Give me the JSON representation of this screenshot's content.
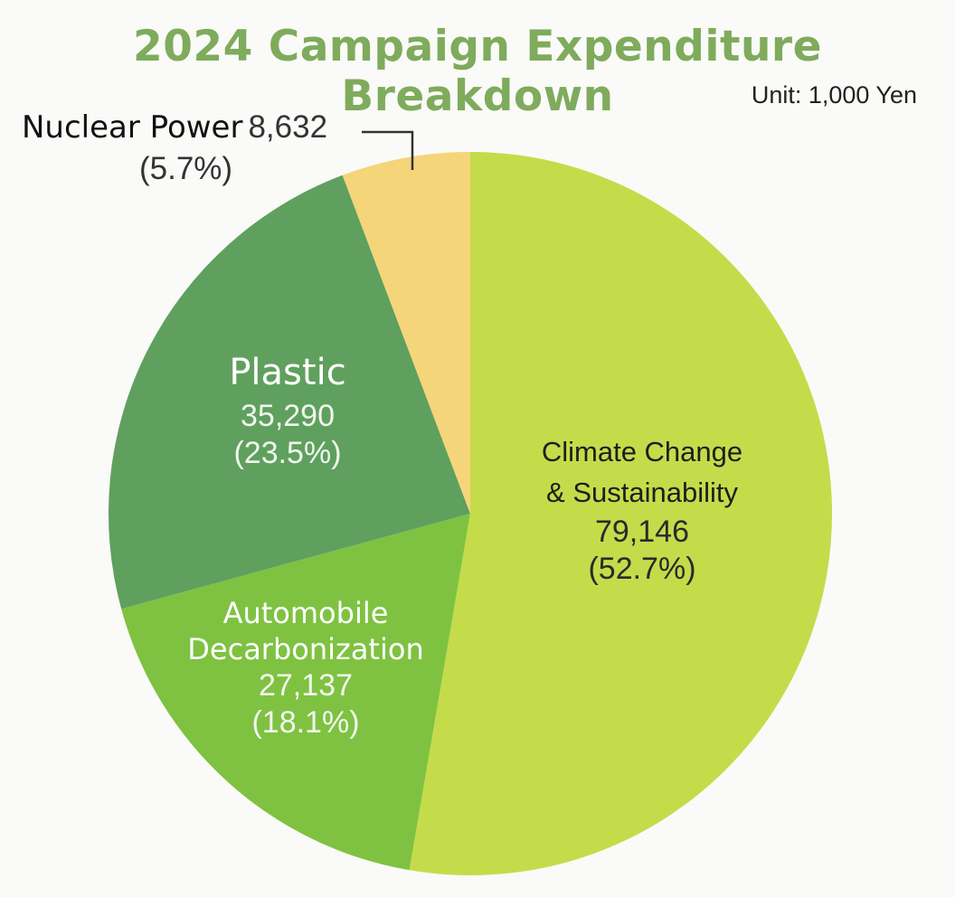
{
  "chart_data": {
    "type": "pie",
    "title": "2024 Campaign Expenditure Breakdown",
    "unit": "Unit: 1,000 Yen",
    "title_color": "#7fab5c",
    "slices": [
      {
        "label": "Climate Change & Sustainability",
        "label_lines": [
          "Climate Change",
          "& Sustainability"
        ],
        "value": 79146,
        "value_text": "79,146",
        "percent": 52.7,
        "percent_text": "(52.7%)",
        "color": "#c4dc4a"
      },
      {
        "label": "Automobile Decarbonization",
        "label_lines": [
          "Automobile",
          "Decarbonization"
        ],
        "value": 27137,
        "value_text": "27,137",
        "percent": 18.1,
        "percent_text": "(18.1%)",
        "color": "#7fc242"
      },
      {
        "label": "Plastic",
        "label_lines": [
          "Plastic"
        ],
        "value": 35290,
        "value_text": "35,290",
        "percent": 23.5,
        "percent_text": "(23.5%)",
        "color": "#5fa05e"
      },
      {
        "label": "Nuclear Power",
        "label_lines": [
          "Nuclear Power"
        ],
        "value": 8632,
        "value_text": "8,632",
        "percent": 5.7,
        "percent_text": "(5.7%)",
        "color": "#f5d57a"
      }
    ],
    "start_angle_deg": 0,
    "direction": "clockwise",
    "legend": "none"
  }
}
